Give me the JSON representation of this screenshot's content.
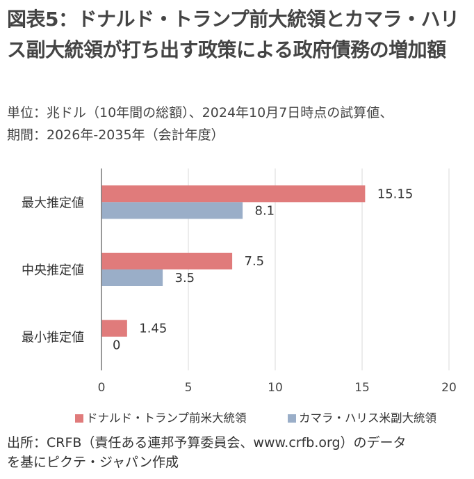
{
  "title": "図表5：ドナルド・トランプ前大統領とカマラ・ハリス副大統領が打ち出す政策による政府債務の増加額",
  "subtitle_line1": "単位：兆ドル（10年間の総額）、2024年10月7日時点の試算値、",
  "subtitle_line2": "期間：2026年-2035年（会計年度）",
  "footnote_line1": "出所：CRFB（責任ある連邦予算委員会、www.crfb.org）のデータ",
  "footnote_line2": "を基にピクテ・ジャパン作成",
  "colors": {
    "trump": "#e07b7b",
    "harris": "#9aaec8",
    "grid": "#d9d9d9",
    "axis": "#555555"
  },
  "chart_data": {
    "type": "bar",
    "orientation": "horizontal",
    "categories": [
      "最大推定値",
      "中央推定値",
      "最小推定値"
    ],
    "series": [
      {
        "name": "ドナルド・トランプ前米大統領",
        "values": [
          15.15,
          7.5,
          1.45
        ]
      },
      {
        "name": "カマラ・ハリス米副大統領",
        "values": [
          8.1,
          3.5,
          0
        ]
      }
    ],
    "data_labels": [
      [
        "15.15",
        "7.5",
        "1.45"
      ],
      [
        "8.1",
        "3.5",
        "0"
      ]
    ],
    "xticks": [
      0,
      5,
      10,
      15,
      20
    ],
    "xlim": [
      0,
      20
    ],
    "grid": "vertical",
    "legend": "bottom"
  }
}
